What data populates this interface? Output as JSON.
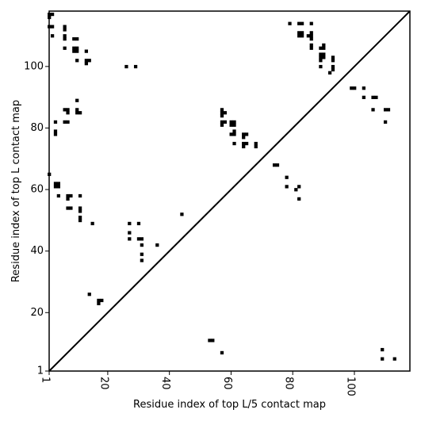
{
  "chart_data": {
    "type": "heatmap",
    "title": "",
    "xlabel": "Residue index of top L/5 contact map",
    "ylabel": "Residue index of top L contact map",
    "xlim": [
      1,
      118
    ],
    "ylim": [
      1,
      118
    ],
    "xticks": [
      1,
      20,
      40,
      60,
      80,
      100
    ],
    "yticks": [
      1,
      20,
      40,
      60,
      80,
      100
    ],
    "xtick_labels": [
      "1",
      "20",
      "40",
      "60",
      "80",
      "100"
    ],
    "ytick_labels": [
      "1",
      "20",
      "40",
      "60",
      "80",
      "100"
    ],
    "diagonal": true,
    "grid": false,
    "cell_color": "#000000",
    "line_color": "#000000",
    "upper_contacts": [
      [
        1,
        117
      ],
      [
        1,
        116
      ],
      [
        2,
        117
      ],
      [
        1,
        113
      ],
      [
        2,
        113
      ],
      [
        2,
        110
      ],
      [
        6,
        113
      ],
      [
        6,
        112
      ],
      [
        6,
        110
      ],
      [
        6,
        109
      ],
      [
        6,
        106
      ],
      [
        9,
        109
      ],
      [
        10,
        109
      ],
      [
        9,
        106
      ],
      [
        10,
        106
      ],
      [
        9,
        105
      ],
      [
        10,
        105
      ],
      [
        10,
        102
      ],
      [
        13,
        105
      ],
      [
        13,
        102
      ],
      [
        14,
        102
      ],
      [
        13,
        101
      ],
      [
        26,
        100
      ],
      [
        29,
        100
      ],
      [
        79,
        114
      ],
      [
        82,
        114
      ],
      [
        83,
        114
      ],
      [
        86,
        114
      ],
      [
        82,
        111
      ],
      [
        83,
        111
      ],
      [
        82,
        110
      ],
      [
        83,
        110
      ],
      [
        85,
        110
      ],
      [
        86,
        111
      ],
      [
        86,
        110
      ],
      [
        86,
        109
      ],
      [
        86,
        107
      ],
      [
        86,
        106
      ],
      [
        89,
        106
      ],
      [
        90,
        107
      ],
      [
        90,
        106
      ],
      [
        89,
        104
      ],
      [
        90,
        104
      ],
      [
        89,
        103
      ],
      [
        90,
        103
      ],
      [
        93,
        103
      ],
      [
        93,
        102
      ],
      [
        89,
        102
      ],
      [
        89,
        100
      ],
      [
        93,
        100
      ],
      [
        93,
        99
      ],
      [
        92,
        98
      ],
      [
        99,
        93
      ],
      [
        100,
        93
      ],
      [
        103,
        93
      ],
      [
        103,
        90
      ],
      [
        106,
        90
      ],
      [
        107,
        90
      ],
      [
        106,
        86
      ],
      [
        110,
        86
      ],
      [
        111,
        86
      ],
      [
        110,
        82
      ],
      [
        10,
        89
      ],
      [
        6,
        86
      ],
      [
        7,
        86
      ],
      [
        10,
        86
      ],
      [
        7,
        85
      ],
      [
        10,
        85
      ],
      [
        11,
        85
      ],
      [
        6,
        82
      ],
      [
        7,
        82
      ],
      [
        3,
        82
      ],
      [
        3,
        79
      ],
      [
        3,
        78
      ],
      [
        57,
        86
      ],
      [
        58,
        85
      ],
      [
        57,
        85
      ],
      [
        57,
        84
      ],
      [
        57,
        82
      ],
      [
        58,
        82
      ],
      [
        60,
        82
      ],
      [
        61,
        82
      ],
      [
        57,
        81
      ],
      [
        60,
        81
      ],
      [
        61,
        81
      ],
      [
        61,
        79
      ],
      [
        60,
        78
      ],
      [
        61,
        78
      ],
      [
        64,
        78
      ],
      [
        65,
        78
      ],
      [
        64,
        77
      ],
      [
        61,
        75
      ],
      [
        64,
        75
      ],
      [
        65,
        75
      ],
      [
        64,
        74
      ],
      [
        68,
        75
      ],
      [
        68,
        74
      ],
      [
        74,
        68
      ],
      [
        75,
        68
      ],
      [
        1,
        65
      ],
      [
        3,
        62
      ],
      [
        4,
        62
      ],
      [
        3,
        61
      ],
      [
        4,
        61
      ],
      [
        4,
        58
      ],
      [
        7,
        58
      ],
      [
        8,
        58
      ],
      [
        7,
        57
      ],
      [
        11,
        58
      ],
      [
        7,
        54
      ],
      [
        8,
        54
      ],
      [
        11,
        54
      ],
      [
        11,
        53
      ],
      [
        11,
        51
      ],
      [
        11,
        50
      ],
      [
        15,
        49
      ],
      [
        44,
        52
      ],
      [
        27,
        49
      ],
      [
        30,
        49
      ],
      [
        27,
        46
      ],
      [
        27,
        44
      ],
      [
        30,
        44
      ],
      [
        31,
        44
      ],
      [
        31,
        42
      ],
      [
        31,
        39
      ],
      [
        31,
        37
      ],
      [
        36,
        42
      ],
      [
        78,
        64
      ],
      [
        78,
        61
      ],
      [
        81,
        60
      ],
      [
        82,
        61
      ],
      [
        82,
        57
      ],
      [
        14,
        26
      ],
      [
        17,
        24
      ],
      [
        18,
        24
      ],
      [
        17,
        23
      ]
    ],
    "lower_contacts": [
      [
        53,
        11
      ],
      [
        54,
        11
      ],
      [
        57,
        7
      ],
      [
        109,
        8
      ],
      [
        109,
        5
      ],
      [
        113,
        5
      ]
    ]
  }
}
